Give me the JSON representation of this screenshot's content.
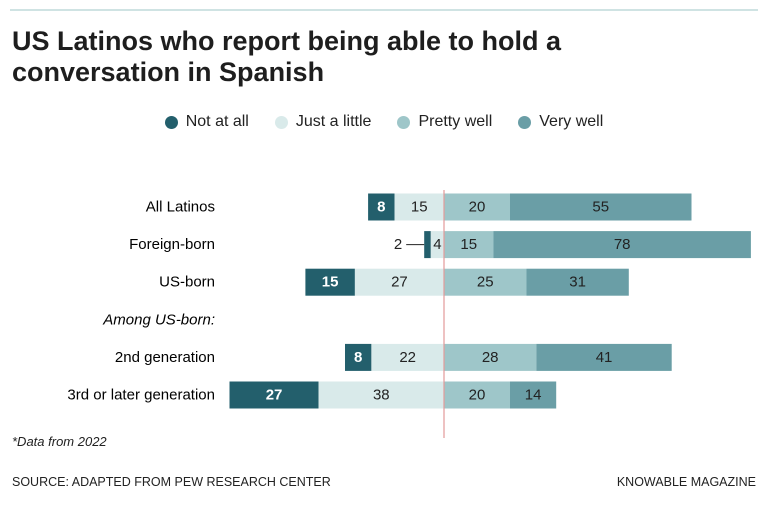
{
  "chart_data": {
    "type": "diverging-bar",
    "title": "US Latinos who report being able to hold a conversation in Spanish",
    "categories": [
      "All Latinos",
      "Foreign-born",
      "US-born",
      "Among US-born:",
      "2nd generation",
      "3rd or later generation"
    ],
    "series": [
      {
        "name": "Not at all",
        "color": "#235f6c",
        "values": [
          8,
          2,
          15,
          null,
          8,
          27
        ]
      },
      {
        "name": "Just a little",
        "color": "#d9eaea",
        "values": [
          15,
          4,
          27,
          null,
          22,
          38
        ]
      },
      {
        "name": "Pretty well",
        "color": "#9ec6c9",
        "values": [
          20,
          15,
          25,
          null,
          28,
          20
        ]
      },
      {
        "name": "Very well",
        "color": "#6a9ea6",
        "values": [
          55,
          78,
          31,
          null,
          41,
          14
        ]
      }
    ],
    "note": "*Data from 2022",
    "source": "SOURCE: ADAPTED FROM PEW RESEARCH CENTER",
    "credit": "KNOWABLE MAGAZINE"
  }
}
